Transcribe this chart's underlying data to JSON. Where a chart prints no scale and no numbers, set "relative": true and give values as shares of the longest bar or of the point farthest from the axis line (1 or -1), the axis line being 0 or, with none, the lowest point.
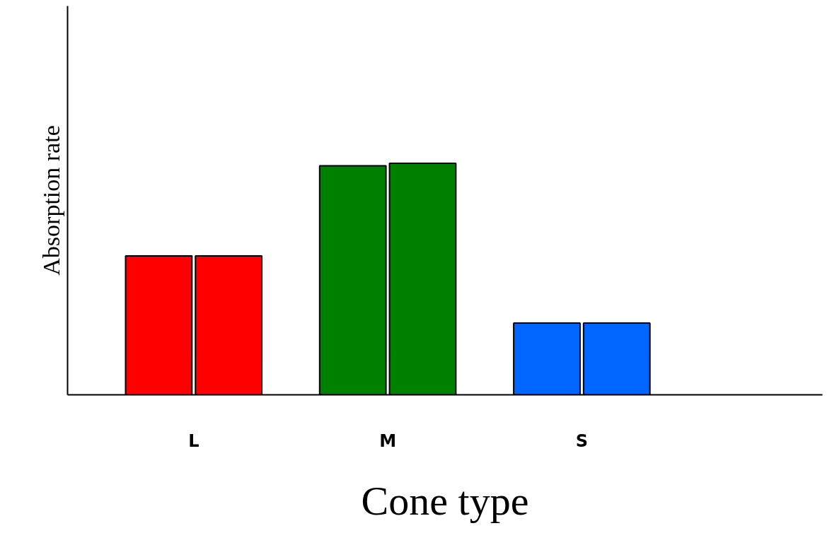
{
  "chart_data": {
    "type": "bar",
    "relative": true,
    "xlabel": "Cone type",
    "ylabel": "Absorption rate",
    "categories": [
      "L",
      "M",
      "S"
    ],
    "series": [
      {
        "colors": [
          "#ff0000",
          "#008000",
          "#0066ff"
        ],
        "values": [
          0.6,
          0.99,
          0.31
        ]
      },
      {
        "colors": [
          "#ff0000",
          "#008000",
          "#0066ff"
        ],
        "values": [
          0.6,
          1,
          0.31
        ]
      }
    ],
    "grid": false
  }
}
